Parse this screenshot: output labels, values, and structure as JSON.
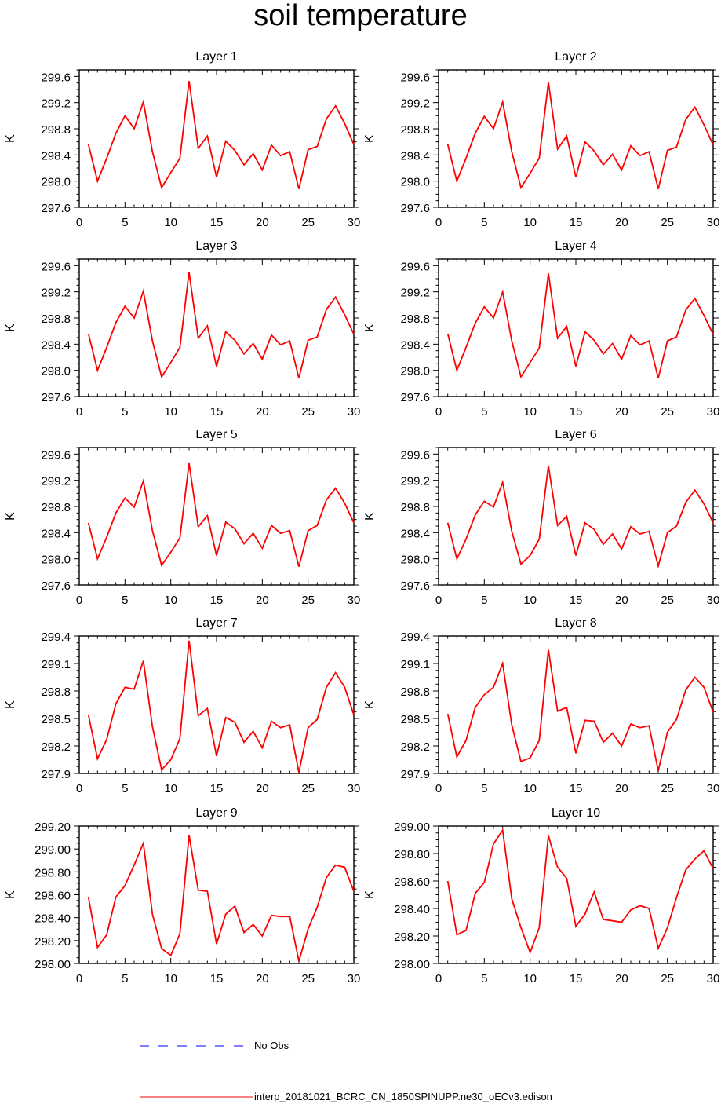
{
  "figure": {
    "title": "soil temperature"
  },
  "colors": {
    "model_line": "#ff0000",
    "obs_line": "#0000ff",
    "axis": "#000000"
  },
  "legend": {
    "items": [
      {
        "label": "No Obs",
        "style": "dashed",
        "color": "#0000ff"
      },
      {
        "label": "interp_20181021_BCRC_CN_1850SPINUPP.ne30_oECv3.edison",
        "style": "solid",
        "color": "#ff0000"
      }
    ]
  },
  "chart_data": [
    {
      "type": "line",
      "title": "Layer 1",
      "ylabel": "K",
      "xlim": [
        0,
        30
      ],
      "ylim": [
        297.6,
        299.7
      ],
      "xticks": [
        0,
        5,
        10,
        15,
        20,
        25,
        30
      ],
      "yticks": [
        297.6,
        298.0,
        298.4,
        298.8,
        299.2,
        299.6
      ],
      "ytick_labels": [
        "297.6",
        "298.0",
        "298.4",
        "298.8",
        "299.2",
        "299.6"
      ],
      "x": [
        1,
        2,
        3,
        4,
        5,
        6,
        7,
        8,
        9,
        10,
        11,
        12,
        13,
        14,
        15,
        16,
        17,
        18,
        19,
        20,
        21,
        22,
        23,
        24,
        25,
        26,
        27,
        28,
        29,
        30
      ],
      "series": [
        {
          "name": "interp_20181021_BCRC_CN_1850SPINUPP.ne30_oECv3.edison",
          "values": [
            298.56,
            298.0,
            298.35,
            298.73,
            299.0,
            298.8,
            299.21,
            298.45,
            297.9,
            298.13,
            298.35,
            299.53,
            298.5,
            298.69,
            298.06,
            298.61,
            298.47,
            298.25,
            298.42,
            298.17,
            298.55,
            298.39,
            298.45,
            297.88,
            298.48,
            298.53,
            298.95,
            299.15,
            298.88,
            298.56
          ]
        }
      ]
    },
    {
      "type": "line",
      "title": "Layer 2",
      "ylabel": "K",
      "xlim": [
        0,
        30
      ],
      "ylim": [
        297.6,
        299.7
      ],
      "xticks": [
        0,
        5,
        10,
        15,
        20,
        25,
        30
      ],
      "yticks": [
        297.6,
        298.0,
        298.4,
        298.8,
        299.2,
        299.6
      ],
      "ytick_labels": [
        "297.6",
        "298.0",
        "298.4",
        "298.8",
        "299.2",
        "299.6"
      ],
      "x": [
        1,
        2,
        3,
        4,
        5,
        6,
        7,
        8,
        9,
        10,
        11,
        12,
        13,
        14,
        15,
        16,
        17,
        18,
        19,
        20,
        21,
        22,
        23,
        24,
        25,
        26,
        27,
        28,
        29,
        30
      ],
      "series": [
        {
          "name": "interp_20181021_BCRC_CN_1850SPINUPP.ne30_oECv3.edison",
          "values": [
            298.56,
            298.0,
            298.35,
            298.73,
            298.99,
            298.8,
            299.21,
            298.45,
            297.9,
            298.12,
            298.35,
            299.51,
            298.49,
            298.69,
            298.06,
            298.6,
            298.46,
            298.25,
            298.41,
            298.17,
            298.54,
            298.39,
            298.45,
            297.88,
            298.47,
            298.52,
            298.94,
            299.13,
            298.86,
            298.55
          ]
        }
      ]
    },
    {
      "type": "line",
      "title": "Layer 3",
      "ylabel": "K",
      "xlim": [
        0,
        30
      ],
      "ylim": [
        297.6,
        299.7
      ],
      "xticks": [
        0,
        5,
        10,
        15,
        20,
        25,
        30
      ],
      "yticks": [
        297.6,
        298.0,
        298.4,
        298.8,
        299.2,
        299.6
      ],
      "ytick_labels": [
        "297.6",
        "298.0",
        "298.4",
        "298.8",
        "299.2",
        "299.6"
      ],
      "x": [
        1,
        2,
        3,
        4,
        5,
        6,
        7,
        8,
        9,
        10,
        11,
        12,
        13,
        14,
        15,
        16,
        17,
        18,
        19,
        20,
        21,
        22,
        23,
        24,
        25,
        26,
        27,
        28,
        29,
        30
      ],
      "series": [
        {
          "name": "interp_20181021_BCRC_CN_1850SPINUPP.ne30_oECv3.edison",
          "values": [
            298.56,
            298.0,
            298.35,
            298.73,
            298.98,
            298.8,
            299.21,
            298.45,
            297.9,
            298.12,
            298.35,
            299.5,
            298.49,
            298.68,
            298.06,
            298.59,
            298.46,
            298.25,
            298.41,
            298.17,
            298.54,
            298.39,
            298.45,
            297.88,
            298.46,
            298.51,
            298.93,
            299.12,
            298.85,
            298.55
          ]
        }
      ]
    },
    {
      "type": "line",
      "title": "Layer 4",
      "ylabel": "K",
      "xlim": [
        0,
        30
      ],
      "ylim": [
        297.6,
        299.7
      ],
      "xticks": [
        0,
        5,
        10,
        15,
        20,
        25,
        30
      ],
      "yticks": [
        297.6,
        298.0,
        298.4,
        298.8,
        299.2,
        299.6
      ],
      "ytick_labels": [
        "297.6",
        "298.0",
        "298.4",
        "298.8",
        "299.2",
        "299.6"
      ],
      "x": [
        1,
        2,
        3,
        4,
        5,
        6,
        7,
        8,
        9,
        10,
        11,
        12,
        13,
        14,
        15,
        16,
        17,
        18,
        19,
        20,
        21,
        22,
        23,
        24,
        25,
        26,
        27,
        28,
        29,
        30
      ],
      "series": [
        {
          "name": "interp_20181021_BCRC_CN_1850SPINUPP.ne30_oECv3.edison",
          "values": [
            298.56,
            298.0,
            298.35,
            298.72,
            298.97,
            298.8,
            299.2,
            298.45,
            297.9,
            298.12,
            298.34,
            299.48,
            298.49,
            298.67,
            298.06,
            298.59,
            298.46,
            298.25,
            298.41,
            298.17,
            298.53,
            298.39,
            298.45,
            297.88,
            298.45,
            298.51,
            298.92,
            299.1,
            298.84,
            298.55
          ]
        }
      ]
    },
    {
      "type": "line",
      "title": "Layer 5",
      "ylabel": "K",
      "xlim": [
        0,
        30
      ],
      "ylim": [
        297.6,
        299.7
      ],
      "xticks": [
        0,
        5,
        10,
        15,
        20,
        25,
        30
      ],
      "yticks": [
        297.6,
        298.0,
        298.4,
        298.8,
        299.2,
        299.6
      ],
      "ytick_labels": [
        "297.6",
        "298.0",
        "298.4",
        "298.8",
        "299.2",
        "299.6"
      ],
      "x": [
        1,
        2,
        3,
        4,
        5,
        6,
        7,
        8,
        9,
        10,
        11,
        12,
        13,
        14,
        15,
        16,
        17,
        18,
        19,
        20,
        21,
        22,
        23,
        24,
        25,
        26,
        27,
        28,
        29,
        30
      ],
      "series": [
        {
          "name": "interp_20181021_BCRC_CN_1850SPINUPP.ne30_oECv3.edison",
          "values": [
            298.55,
            298.0,
            298.33,
            298.7,
            298.93,
            298.79,
            299.19,
            298.43,
            297.9,
            298.1,
            298.32,
            299.46,
            298.49,
            298.66,
            298.05,
            298.56,
            298.46,
            298.23,
            298.39,
            298.16,
            298.51,
            298.39,
            298.43,
            297.88,
            298.43,
            298.51,
            298.9,
            299.08,
            298.85,
            298.55
          ]
        }
      ]
    },
    {
      "type": "line",
      "title": "Layer 6",
      "ylabel": "K",
      "xlim": [
        0,
        30
      ],
      "ylim": [
        297.6,
        299.7
      ],
      "xticks": [
        0,
        5,
        10,
        15,
        20,
        25,
        30
      ],
      "yticks": [
        297.6,
        298.0,
        298.4,
        298.8,
        299.2,
        299.6
      ],
      "ytick_labels": [
        "297.6",
        "298.0",
        "298.4",
        "298.8",
        "299.2",
        "299.6"
      ],
      "x": [
        1,
        2,
        3,
        4,
        5,
        6,
        7,
        8,
        9,
        10,
        11,
        12,
        13,
        14,
        15,
        16,
        17,
        18,
        19,
        20,
        21,
        22,
        23,
        24,
        25,
        26,
        27,
        28,
        29,
        30
      ],
      "series": [
        {
          "name": "interp_20181021_BCRC_CN_1850SPINUPP.ne30_oECv3.edison",
          "values": [
            298.55,
            298.0,
            298.3,
            298.67,
            298.88,
            298.79,
            299.17,
            298.42,
            297.92,
            298.05,
            298.3,
            299.42,
            298.51,
            298.65,
            298.05,
            298.55,
            298.45,
            298.22,
            298.38,
            298.15,
            298.49,
            298.38,
            298.42,
            297.89,
            298.4,
            298.5,
            298.86,
            299.05,
            298.84,
            298.55
          ]
        }
      ]
    },
    {
      "type": "line",
      "title": "Layer 7",
      "ylabel": "K",
      "xlim": [
        0,
        30
      ],
      "ylim": [
        297.9,
        299.4
      ],
      "xticks": [
        0,
        5,
        10,
        15,
        20,
        25,
        30
      ],
      "yticks": [
        297.9,
        298.2,
        298.5,
        298.8,
        299.1,
        299.4
      ],
      "ytick_labels": [
        "297.9",
        "298.2",
        "298.5",
        "298.8",
        "299.1",
        "299.4"
      ],
      "x": [
        1,
        2,
        3,
        4,
        5,
        6,
        7,
        8,
        9,
        10,
        11,
        12,
        13,
        14,
        15,
        16,
        17,
        18,
        19,
        20,
        21,
        22,
        23,
        24,
        25,
        26,
        27,
        28,
        29,
        30
      ],
      "series": [
        {
          "name": "interp_20181021_BCRC_CN_1850SPINUPP.ne30_oECv3.edison",
          "values": [
            298.54,
            298.06,
            298.27,
            298.66,
            298.84,
            298.82,
            299.13,
            298.41,
            297.94,
            298.05,
            298.28,
            299.35,
            298.53,
            298.61,
            298.09,
            298.51,
            298.46,
            298.24,
            298.36,
            298.18,
            298.47,
            298.4,
            298.43,
            297.91,
            298.4,
            298.49,
            298.84,
            299.0,
            298.84,
            298.54
          ]
        }
      ]
    },
    {
      "type": "line",
      "title": "Layer 8",
      "ylabel": "K",
      "xlim": [
        0,
        30
      ],
      "ylim": [
        297.9,
        299.4
      ],
      "xticks": [
        0,
        5,
        10,
        15,
        20,
        25,
        30
      ],
      "yticks": [
        297.9,
        298.2,
        298.5,
        298.8,
        299.1,
        299.4
      ],
      "ytick_labels": [
        "297.9",
        "298.2",
        "298.5",
        "298.8",
        "299.1",
        "299.4"
      ],
      "x": [
        1,
        2,
        3,
        4,
        5,
        6,
        7,
        8,
        9,
        10,
        11,
        12,
        13,
        14,
        15,
        16,
        17,
        18,
        19,
        20,
        21,
        22,
        23,
        24,
        25,
        26,
        27,
        28,
        29,
        30
      ],
      "series": [
        {
          "name": "interp_20181021_BCRC_CN_1850SPINUPP.ne30_oECv3.edison",
          "values": [
            298.55,
            298.08,
            298.26,
            298.62,
            298.76,
            298.84,
            299.1,
            298.43,
            298.03,
            298.07,
            298.26,
            299.25,
            298.58,
            298.62,
            298.12,
            298.48,
            298.47,
            298.24,
            298.34,
            298.2,
            298.44,
            298.4,
            298.42,
            297.93,
            298.35,
            298.49,
            298.81,
            298.95,
            298.84,
            298.57
          ]
        }
      ]
    },
    {
      "type": "line",
      "title": "Layer 9",
      "ylabel": "K",
      "xlim": [
        0,
        30
      ],
      "ylim": [
        298.0,
        299.2
      ],
      "xticks": [
        0,
        5,
        10,
        15,
        20,
        25,
        30
      ],
      "yticks": [
        298.0,
        298.2,
        298.4,
        298.6,
        298.8,
        299.0,
        299.2
      ],
      "ytick_labels": [
        "298.00",
        "298.20",
        "298.40",
        "298.60",
        "298.80",
        "299.00",
        "299.20"
      ],
      "x": [
        1,
        2,
        3,
        4,
        5,
        6,
        7,
        8,
        9,
        10,
        11,
        12,
        13,
        14,
        15,
        16,
        17,
        18,
        19,
        20,
        21,
        22,
        23,
        24,
        25,
        26,
        27,
        28,
        29,
        30
      ],
      "series": [
        {
          "name": "interp_20181021_BCRC_CN_1850SPINUPP.ne30_oECv3.edison",
          "values": [
            298.58,
            298.14,
            298.25,
            298.58,
            298.68,
            298.86,
            299.05,
            298.43,
            298.13,
            298.07,
            298.26,
            299.12,
            298.64,
            298.63,
            298.17,
            298.43,
            298.5,
            298.27,
            298.34,
            298.24,
            298.42,
            298.41,
            298.41,
            298.02,
            298.3,
            298.49,
            298.75,
            298.86,
            298.84,
            298.63
          ]
        }
      ]
    },
    {
      "type": "line",
      "title": "Layer 10",
      "ylabel": "K",
      "xlim": [
        0,
        30
      ],
      "ylim": [
        298.0,
        299.0
      ],
      "xticks": [
        0,
        5,
        10,
        15,
        20,
        25,
        30
      ],
      "yticks": [
        298.0,
        298.2,
        298.4,
        298.6,
        298.8,
        299.0
      ],
      "ytick_labels": [
        "298.00",
        "298.20",
        "298.40",
        "298.60",
        "298.80",
        "299.00"
      ],
      "x": [
        1,
        2,
        3,
        4,
        5,
        6,
        7,
        8,
        9,
        10,
        11,
        12,
        13,
        14,
        15,
        16,
        17,
        18,
        19,
        20,
        21,
        22,
        23,
        24,
        25,
        26,
        27,
        28,
        29,
        30
      ],
      "series": [
        {
          "name": "interp_20181021_BCRC_CN_1850SPINUPP.ne30_oECv3.edison",
          "values": [
            298.6,
            298.21,
            298.24,
            298.51,
            298.59,
            298.87,
            298.97,
            298.47,
            298.26,
            298.08,
            298.26,
            298.93,
            298.7,
            298.62,
            298.27,
            298.36,
            298.52,
            298.32,
            298.31,
            298.3,
            298.39,
            298.42,
            298.4,
            298.11,
            298.26,
            298.48,
            298.68,
            298.76,
            298.82,
            298.69
          ]
        }
      ]
    }
  ]
}
